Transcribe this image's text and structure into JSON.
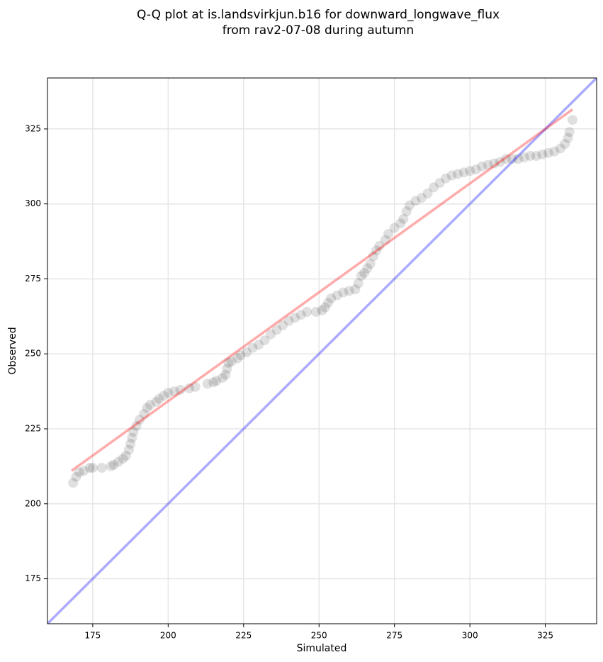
{
  "chart_data": {
    "type": "scatter",
    "title": [
      "Q-Q plot at is.landsvirkjun.b16 for downward_longwave_flux",
      "from rav2-07-08 during autumn"
    ],
    "xlabel": "Simulated",
    "ylabel": "Observed",
    "xlim": [
      160,
      342
    ],
    "ylim": [
      160,
      342
    ],
    "xticks": [
      175,
      200,
      225,
      250,
      275,
      300,
      325
    ],
    "yticks": [
      175,
      200,
      225,
      250,
      275,
      300,
      325
    ],
    "grid": true,
    "series": [
      {
        "color": "#000000",
        "alpha": 0.12,
        "x": [
          168.5,
          169.5,
          170.5,
          172,
          174,
          175,
          178,
          181,
          182,
          183.5,
          185,
          186,
          187,
          187.5,
          188,
          188.5,
          189.5,
          190.5,
          192,
          193,
          194,
          196,
          197,
          198.5,
          200,
          202,
          204,
          207,
          209,
          213,
          215,
          216,
          218,
          219,
          219.5,
          220,
          221,
          223,
          224,
          226,
          228,
          230,
          232,
          234,
          236,
          238,
          240,
          242,
          244,
          246,
          249,
          251,
          252,
          253,
          254,
          256,
          258,
          260,
          262,
          263,
          264,
          265,
          266,
          267,
          268,
          269,
          270,
          272,
          273,
          275,
          277,
          278,
          279,
          280,
          282,
          284,
          286,
          288,
          290,
          292,
          294,
          296,
          298,
          300,
          302,
          304,
          306,
          308,
          310,
          312,
          314,
          316,
          318,
          320,
          322,
          324,
          326,
          328,
          330,
          331.5,
          332.5,
          333,
          334
        ],
        "values": [
          207,
          209,
          210.5,
          211,
          212,
          212,
          212,
          212.5,
          213,
          214,
          215,
          216,
          218,
          220,
          222,
          224,
          226,
          228,
          230,
          232,
          233,
          234,
          235,
          236,
          237,
          237.5,
          238,
          238.5,
          239,
          240,
          240.5,
          241,
          242,
          243,
          245,
          247,
          247.5,
          248.5,
          249.5,
          250.5,
          252,
          253,
          254.5,
          256.5,
          258,
          259.5,
          261,
          262,
          263,
          264,
          264,
          264.5,
          265.5,
          267,
          268.5,
          269.5,
          270.5,
          271,
          271.5,
          273.5,
          276,
          277,
          278.5,
          280,
          282.5,
          284.5,
          286,
          288,
          290,
          292,
          293.5,
          295,
          297.5,
          299.5,
          301,
          302,
          303.5,
          305.5,
          307,
          308.5,
          309.5,
          310,
          310.5,
          311,
          311.5,
          312.5,
          313,
          313.5,
          314,
          315,
          315,
          315,
          315.5,
          316,
          316,
          316.5,
          317,
          317.5,
          318.5,
          320,
          322,
          324,
          328
        ]
      }
    ],
    "lines": [
      {
        "color": "#0000ff",
        "alpha": 0.33,
        "x": [
          160,
          342
        ],
        "values": [
          160,
          342
        ]
      },
      {
        "color": "#ff0000",
        "alpha": 0.33,
        "x": [
          168,
          334
        ],
        "values": [
          211,
          331.5
        ]
      }
    ]
  }
}
